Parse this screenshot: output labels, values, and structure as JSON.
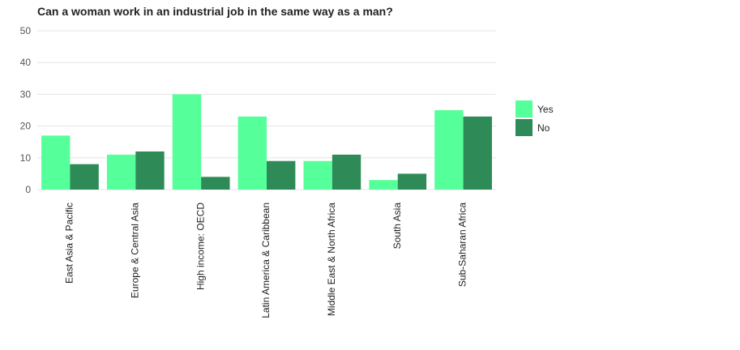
{
  "chart_data": {
    "type": "bar",
    "title": "Can a woman work in an industrial job in the same way as a man?",
    "xlabel": "",
    "ylabel": "",
    "ylim": [
      0,
      50
    ],
    "yticks": [
      0,
      10,
      20,
      30,
      40,
      50
    ],
    "grid": true,
    "legend_position": "right",
    "categories": [
      "East Asia & Pacific",
      "Europe & Central Asia",
      "High income: OECD",
      "Latin America & Caribbean",
      "Middle East & North Africa",
      "South Asia",
      "Sub-Saharan Africa"
    ],
    "series": [
      {
        "name": "Yes",
        "color": "#55ff99",
        "values": [
          17,
          11,
          30,
          23,
          9,
          3,
          25
        ]
      },
      {
        "name": "No",
        "color": "#2e8b57",
        "values": [
          8,
          12,
          4,
          9,
          11,
          5,
          23
        ]
      }
    ]
  }
}
